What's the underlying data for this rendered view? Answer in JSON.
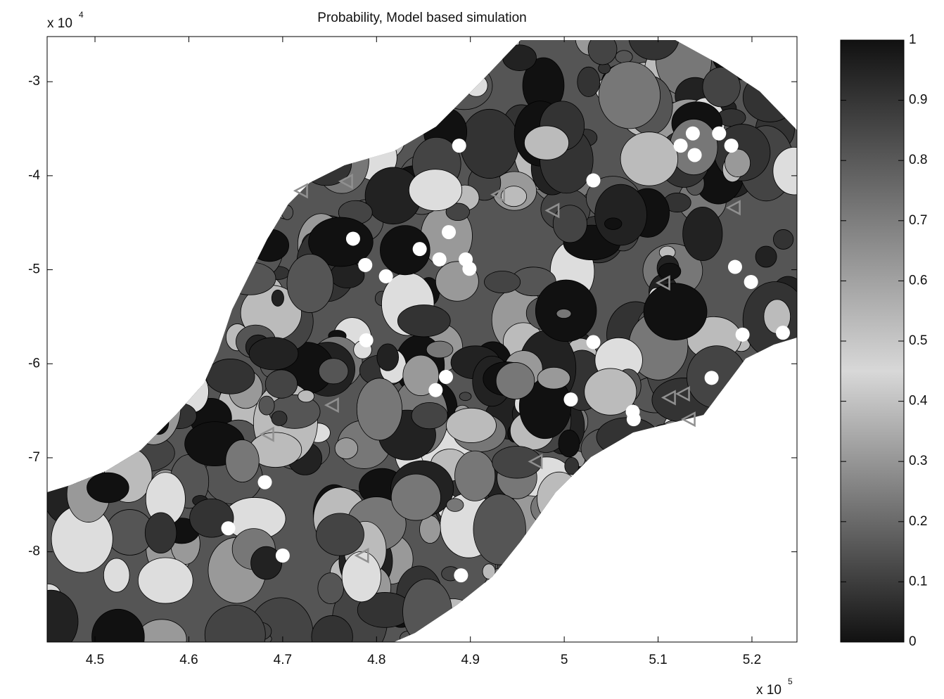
{
  "chart_data": {
    "type": "scatter",
    "title": "Probability, Model based simulation",
    "x_multiplier": "x 10",
    "x_multiplier_exp": "5",
    "y_multiplier": "x 10",
    "y_multiplier_exp": "4",
    "xlim": [
      4.449,
      5.248
    ],
    "ylim": [
      -8.96,
      -2.52
    ],
    "xticks": [
      4.5,
      4.6,
      4.7,
      4.8,
      4.9,
      5,
      5.1,
      5.2
    ],
    "yticks": [
      -3,
      -4,
      -5,
      -6,
      -7,
      -8
    ],
    "colorbar": {
      "clim": [
        0,
        1
      ],
      "ticks": [
        0,
        0.1,
        0.2,
        0.3,
        0.4,
        0.5,
        0.6,
        0.7,
        0.8,
        0.9,
        1
      ]
    },
    "series": [
      {
        "marker": "circle",
        "color": "#ffffff",
        "x": [
          4.888,
          5.031,
          5.137,
          5.124,
          5.139,
          5.165,
          5.178,
          4.775,
          4.877,
          4.846,
          4.867,
          4.895,
          4.899,
          4.788,
          4.81,
          4.789,
          5.031,
          5.182,
          5.199,
          5.19,
          5.233,
          4.874,
          4.863,
          5.007,
          5.073,
          5.074,
          5.157,
          4.681,
          4.642,
          4.7,
          4.89
        ],
        "y": [
          -3.68,
          -4.05,
          -3.55,
          -3.68,
          -3.78,
          -3.55,
          -3.68,
          -4.67,
          -4.6,
          -4.78,
          -4.89,
          -4.89,
          -4.99,
          -4.95,
          -5.07,
          -5.75,
          -5.77,
          -4.97,
          -5.13,
          -5.69,
          -5.67,
          -6.14,
          -6.28,
          -6.38,
          -6.51,
          -6.59,
          -6.15,
          -7.26,
          -7.75,
          -8.04,
          -8.25
        ]
      },
      {
        "marker": "triangle-left",
        "color": "#909090",
        "x": [
          4.72,
          4.768,
          4.93,
          4.988,
          5.181,
          5.106,
          5.112,
          5.127,
          5.133,
          4.753,
          4.684,
          4.97,
          4.785
        ],
        "y": [
          -4.16,
          -4.06,
          -4.2,
          -4.37,
          -4.34,
          -5.14,
          -6.36,
          -6.32,
          -6.59,
          -6.44,
          -6.75,
          -7.04,
          -8.04
        ]
      }
    ]
  }
}
